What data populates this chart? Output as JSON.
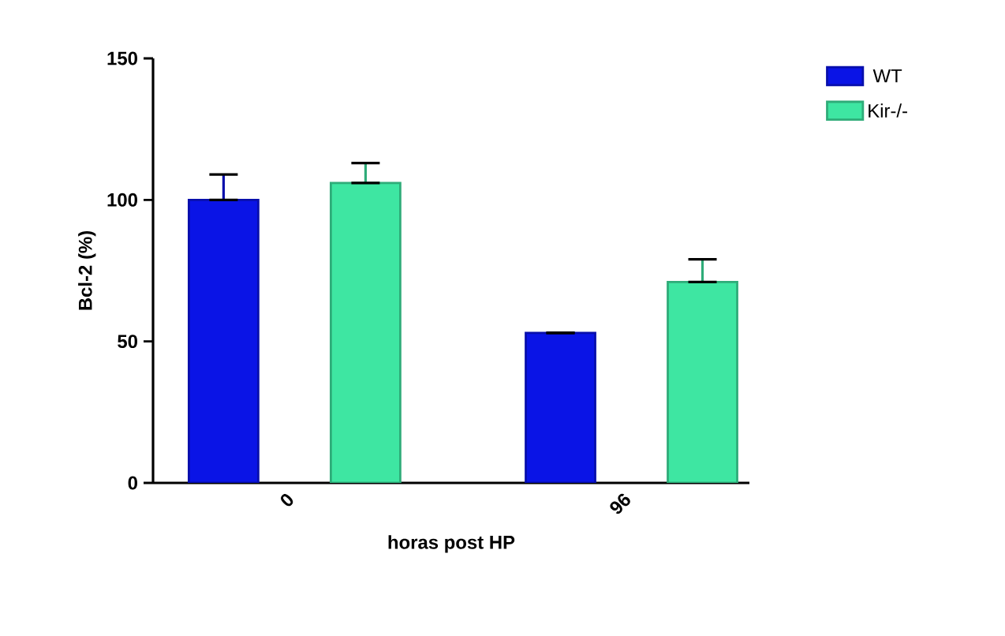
{
  "chart_data": {
    "type": "bar",
    "xlabel": "horas post HP",
    "ylabel": "Bcl-2 (%)",
    "categories": [
      "0",
      "96"
    ],
    "series": [
      {
        "name": "WT",
        "color": "#0a14e6",
        "values": [
          100,
          53
        ],
        "errors": [
          [
            100,
            109
          ],
          null
        ]
      },
      {
        "name": "Kir-/-",
        "color": "#3ee6a2",
        "values": [
          106,
          71
        ],
        "errors": [
          [
            106,
            113
          ],
          [
            71,
            79
          ]
        ]
      }
    ],
    "ylim": [
      0,
      150
    ],
    "yticks": [
      0,
      50,
      100,
      150
    ],
    "grid": false,
    "legend": "top right"
  }
}
